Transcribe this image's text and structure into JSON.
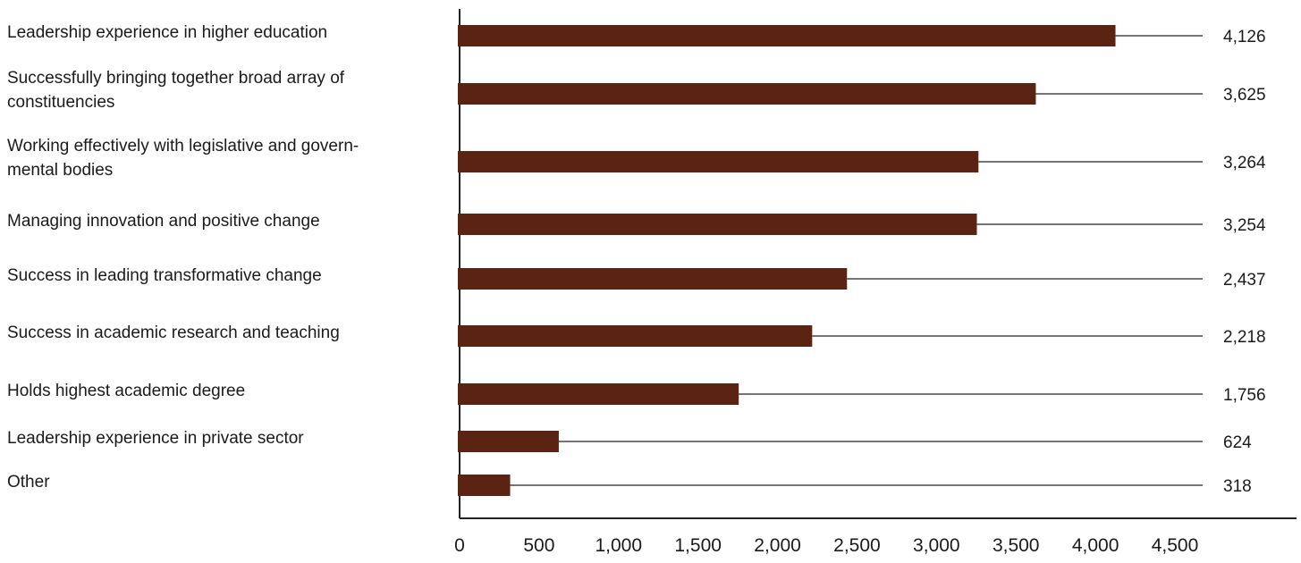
{
  "chart_data": {
    "type": "bar",
    "orientation": "horizontal",
    "categories": [
      [
        "Leadership experience in higher education"
      ],
      [
        "Successfully bringing together broad array of",
        "constituencies"
      ],
      [
        "Working effectively with legislative and govern-",
        "mental bodies"
      ],
      [
        "Managing innovation and positive change"
      ],
      [
        "Success in leading transformative change"
      ],
      [
        "Success in academic research and teaching"
      ],
      [
        "Holds highest academic degree"
      ],
      [
        "Leadership experience in private sector"
      ],
      [
        "Other"
      ]
    ],
    "values": [
      4126,
      3625,
      3264,
      3254,
      2437,
      2218,
      1756,
      624,
      318
    ],
    "value_labels": [
      "4,126",
      "3,625",
      "3,264",
      "3,254",
      "2,437",
      "2,218",
      "1,756",
      "624",
      "318"
    ],
    "xlim": [
      0,
      4500
    ],
    "xticks": [
      0,
      500,
      1000,
      1500,
      2000,
      2500,
      3000,
      3500,
      4000,
      4500
    ],
    "xtick_labels": [
      "0",
      "500",
      "1,000",
      "1,500",
      "2,000",
      "2,500",
      "3,000",
      "3,500",
      "4,000",
      "4,500"
    ],
    "bar_color": "#5a2312",
    "grid": false,
    "legend": "none"
  }
}
